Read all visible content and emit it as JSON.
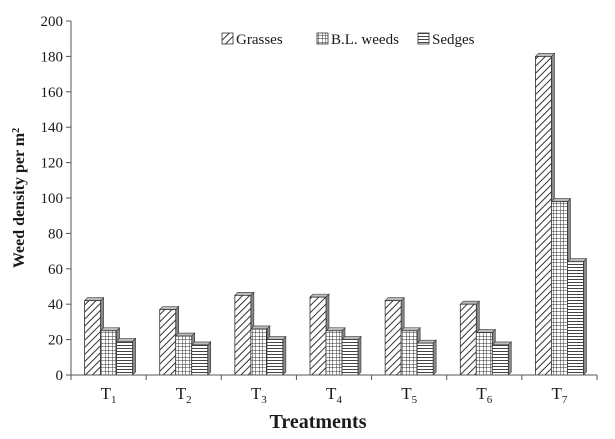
{
  "chart_data": {
    "type": "bar",
    "categories": [
      {
        "base": "T",
        "sub": "1"
      },
      {
        "base": "T",
        "sub": "2"
      },
      {
        "base": "T",
        "sub": "3"
      },
      {
        "base": "T",
        "sub": "4"
      },
      {
        "base": "T",
        "sub": "5"
      },
      {
        "base": "T",
        "sub": "6"
      },
      {
        "base": "T",
        "sub": "7"
      }
    ],
    "series": [
      {
        "name": "Grasses",
        "pattern": "diagonal",
        "values": [
          42,
          37,
          45,
          44,
          42,
          40,
          180
        ]
      },
      {
        "name": "B.L. weeds",
        "pattern": "grid",
        "values": [
          25,
          22,
          26,
          25,
          25,
          24,
          98
        ]
      },
      {
        "name": "Sedges",
        "pattern": "horizontal",
        "values": [
          19,
          17,
          20,
          20,
          18,
          17,
          64
        ]
      }
    ],
    "xlabel": "Treatments",
    "ylabel": {
      "main": "Weed density per m",
      "sup": "2"
    },
    "ylim": [
      0,
      200
    ],
    "yticks": [
      0,
      20,
      40,
      60,
      80,
      100,
      120,
      140,
      160,
      180,
      200
    ],
    "grid": false,
    "legend_position": "top-center",
    "colors": {
      "bar_fill": "#ffffff",
      "bar_stroke": "#333333",
      "axis": "#555555",
      "text": "#1a1a1a"
    }
  }
}
